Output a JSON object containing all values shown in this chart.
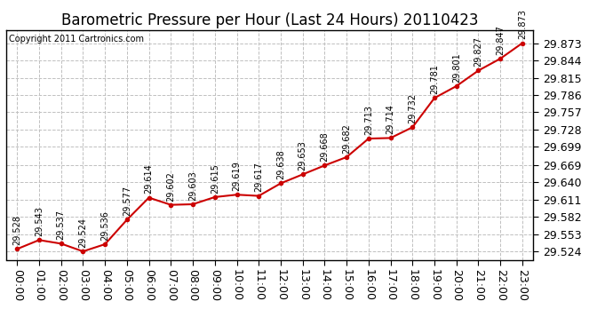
{
  "title": "Barometric Pressure per Hour (Last 24 Hours) 20110423",
  "copyright": "Copyright 2011 Cartronics.com",
  "hours": [
    "00:00",
    "01:00",
    "02:00",
    "03:00",
    "04:00",
    "05:00",
    "06:00",
    "07:00",
    "08:00",
    "09:00",
    "10:00",
    "11:00",
    "12:00",
    "13:00",
    "14:00",
    "15:00",
    "16:00",
    "17:00",
    "18:00",
    "19:00",
    "20:00",
    "21:00",
    "22:00",
    "23:00"
  ],
  "values": [
    29.528,
    29.543,
    29.537,
    29.524,
    29.536,
    29.577,
    29.614,
    29.602,
    29.603,
    29.615,
    29.619,
    29.617,
    29.638,
    29.653,
    29.668,
    29.682,
    29.713,
    29.714,
    29.732,
    29.781,
    29.801,
    29.827,
    29.847,
    29.873
  ],
  "yticks": [
    29.524,
    29.553,
    29.582,
    29.611,
    29.64,
    29.669,
    29.699,
    29.728,
    29.757,
    29.786,
    29.815,
    29.844,
    29.873
  ],
  "line_color": "#cc0000",
  "marker_color": "#cc0000",
  "bg_color": "#ffffff",
  "grid_color": "#c0c0c0",
  "title_fontsize": 12,
  "tick_fontsize": 9,
  "annotation_fontsize": 7,
  "ylim_min": 29.51,
  "ylim_max": 29.895
}
